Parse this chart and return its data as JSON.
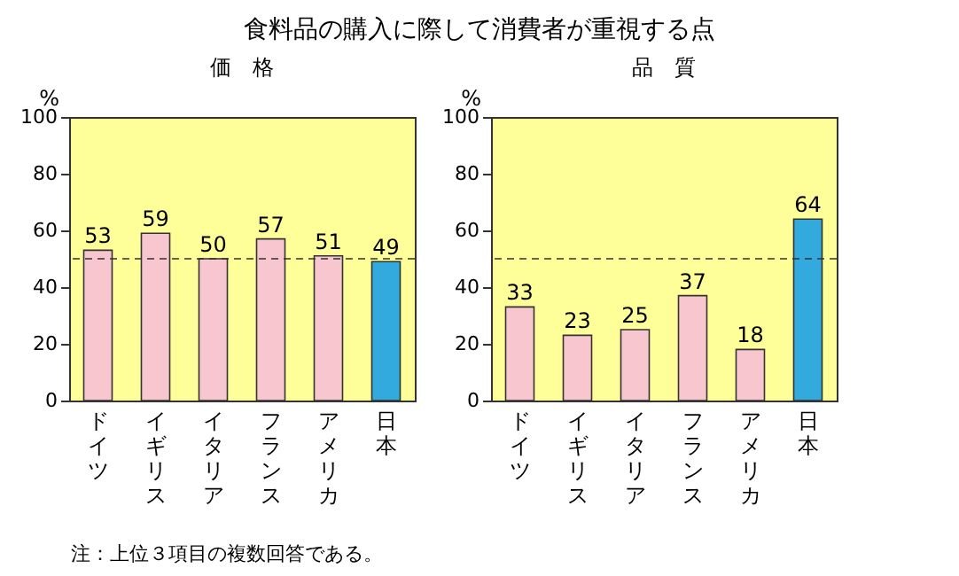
{
  "chart_data": [
    {
      "type": "bar",
      "title": "食料品の購入に際して消費者が重視する点",
      "subtitle": "価　格",
      "ylabel": "%",
      "categories": [
        "ドイツ",
        "イギリス",
        "イタリア",
        "フランス",
        "アメリカ",
        "日本"
      ],
      "values": [
        53,
        59,
        50,
        57,
        51,
        49
      ],
      "colors": [
        "#f7c6cf",
        "#f7c6cf",
        "#f7c6cf",
        "#f7c6cf",
        "#f7c6cf",
        "#33aadd"
      ],
      "ylim": [
        0,
        100
      ],
      "yticks": [
        0,
        20,
        40,
        60,
        80,
        100
      ],
      "data_labels": true,
      "ref_lines": [
        {
          "axis": "y",
          "value": 50,
          "line_style": "dashed"
        }
      ],
      "annotations": [
        "注：上位３項目の複数回答である。"
      ]
    },
    {
      "type": "bar",
      "subtitle": "品　質",
      "ylabel": "%",
      "categories": [
        "ドイツ",
        "イギリス",
        "イタリア",
        "フランス",
        "アメリカ",
        "日本"
      ],
      "values": [
        33,
        23,
        25,
        37,
        18,
        64
      ],
      "colors": [
        "#f7c6cf",
        "#f7c6cf",
        "#f7c6cf",
        "#f7c6cf",
        "#f7c6cf",
        "#33aadd"
      ],
      "ylim": [
        0,
        100
      ],
      "yticks": [
        0,
        20,
        40,
        60,
        80,
        100
      ],
      "data_labels": true,
      "ref_lines": [
        {
          "axis": "y",
          "value": 50,
          "line_style": "dashed"
        }
      ]
    }
  ]
}
